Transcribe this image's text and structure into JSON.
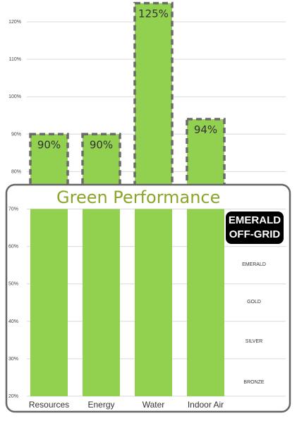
{
  "chart_data": {
    "type": "bar",
    "title": "Green Performance",
    "categories": [
      "Resources",
      "Energy",
      "Water",
      "Indoor Air"
    ],
    "values": [
      90,
      90,
      125,
      94
    ],
    "data_labels": [
      "90%",
      "90%",
      "125%",
      "94%"
    ],
    "y_ticks": [
      "20%",
      "30%",
      "40%",
      "50%",
      "60%",
      "70%",
      "80%",
      "90%",
      "100%",
      "110%",
      "120%"
    ],
    "ylim": [
      20,
      127
    ],
    "grid": true,
    "bar_color": "#92d050",
    "title_color": "#8aa62a",
    "dashed_outline_color": "#6b6b6b",
    "panel_break_value": 70
  },
  "badge": {
    "line1": "EMERALD",
    "line2": "OFF-GRID"
  },
  "tiers": [
    {
      "label": "EMERALD",
      "value": 55
    },
    {
      "label": "GOLD",
      "value": 45
    },
    {
      "label": "SILVER",
      "value": 34.5
    },
    {
      "label": "BRONZE",
      "value": 23.5
    }
  ]
}
